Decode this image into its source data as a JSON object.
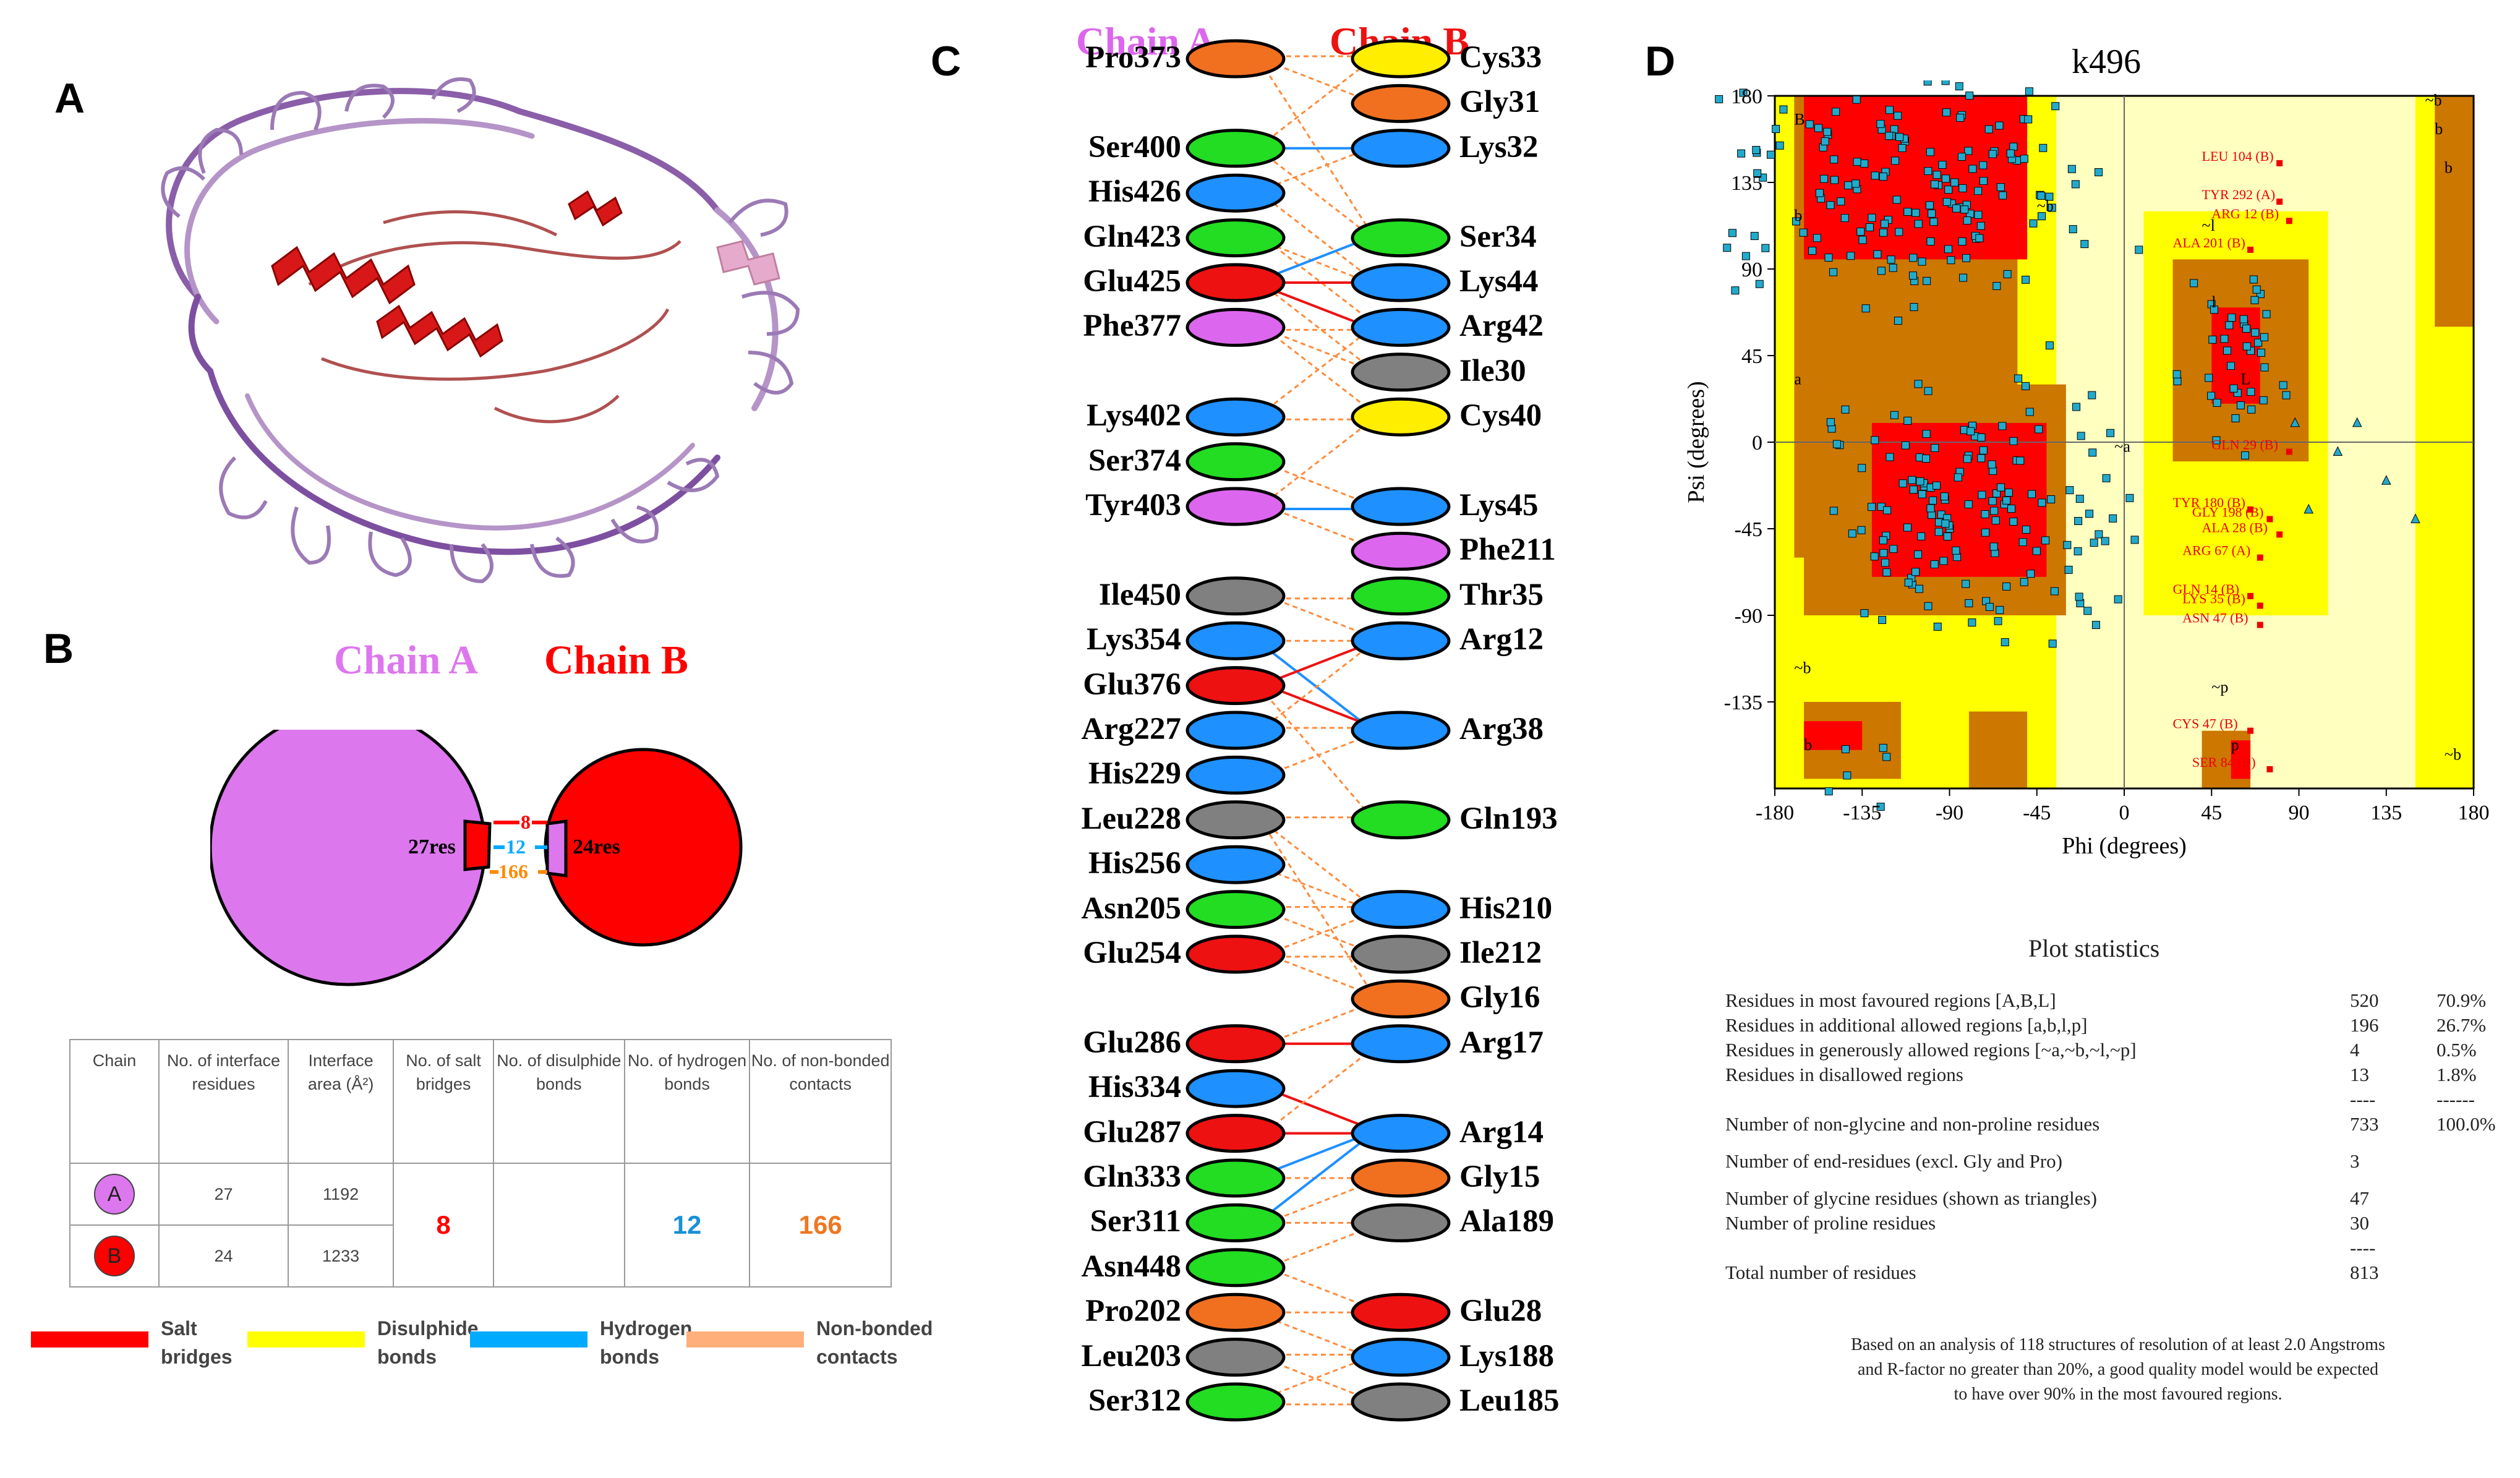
{
  "panel_labels": {
    "a": "A",
    "b": "B",
    "c": "C",
    "d": "D"
  },
  "panel_b": {
    "chain_a_title": "Chain A",
    "chain_b_title": "Chain B",
    "chain_a_res": "27res",
    "chain_b_res": "24res",
    "salt_count": "8",
    "hbond_count": "12",
    "nonbonded_count": "166",
    "colors": {
      "chain_a": "#dd77ee",
      "chain_b": "#ff0000",
      "salt": "#ff0000",
      "hbond": "#00aaff",
      "nonbonded": "#ff8a00",
      "disulphide": "#ffff00",
      "nonbonded_legend": "#ffb07a"
    },
    "table": {
      "headers": [
        "Chain",
        "No. of interface residues",
        "Interface area (Å²)",
        "No. of salt bridges",
        "No. of disulphide bonds",
        "No. of hydrogen bonds",
        "No. of non-bonded contacts"
      ],
      "row_a": {
        "chain": "A",
        "residues": "27",
        "area": "1192"
      },
      "row_b": {
        "chain": "B",
        "residues": "24",
        "area": "1233"
      },
      "salt": "8",
      "disulphide": "",
      "hbonds": "12",
      "nonbonded": "166"
    },
    "legend": {
      "salt": "Salt bridges",
      "disulphide": "Disulphide bonds",
      "hbond": "Hydrogen bonds",
      "nonbonded": "Non-bonded contacts"
    }
  },
  "panel_c": {
    "chain_a_title": "Chain A",
    "chain_b_title": "Chain B",
    "chain_a": [
      {
        "name": "Pro373",
        "color": "#f07020"
      },
      {
        "name": "Ser400",
        "color": "#22dd22"
      },
      {
        "name": "His426",
        "color": "#1e90ff"
      },
      {
        "name": "Gln423",
        "color": "#22dd22"
      },
      {
        "name": "Glu425",
        "color": "#ee1111"
      },
      {
        "name": "Phe377",
        "color": "#dd66ee"
      },
      {
        "name": "Lys402",
        "color": "#1e90ff"
      },
      {
        "name": "Ser374",
        "color": "#22dd22"
      },
      {
        "name": "Tyr403",
        "color": "#dd66ee"
      },
      {
        "name": "Ile450",
        "color": "#808080"
      },
      {
        "name": "Lys354",
        "color": "#1e90ff"
      },
      {
        "name": "Glu376",
        "color": "#ee1111"
      },
      {
        "name": "Arg227",
        "color": "#1e90ff"
      },
      {
        "name": "His229",
        "color": "#1e90ff"
      },
      {
        "name": "Leu228",
        "color": "#808080"
      },
      {
        "name": "His256",
        "color": "#1e90ff"
      },
      {
        "name": "Asn205",
        "color": "#22dd22"
      },
      {
        "name": "Glu254",
        "color": "#ee1111"
      },
      {
        "name": "Glu286",
        "color": "#ee1111"
      },
      {
        "name": "His334",
        "color": "#1e90ff"
      },
      {
        "name": "Glu287",
        "color": "#ee1111"
      },
      {
        "name": "Gln333",
        "color": "#22dd22"
      },
      {
        "name": "Ser311",
        "color": "#22dd22"
      },
      {
        "name": "Asn448",
        "color": "#22dd22"
      },
      {
        "name": "Pro202",
        "color": "#f07020"
      },
      {
        "name": "Leu203",
        "color": "#808080"
      },
      {
        "name": "Ser312",
        "color": "#22dd22"
      }
    ],
    "chain_b": [
      {
        "name": "Cys33",
        "color": "#ffee00"
      },
      {
        "name": "Gly31",
        "color": "#f07020"
      },
      {
        "name": "Lys32",
        "color": "#1e90ff"
      },
      {
        "name": "Ser34",
        "color": "#22dd22"
      },
      {
        "name": "Lys44",
        "color": "#1e90ff"
      },
      {
        "name": "Arg42",
        "color": "#1e90ff"
      },
      {
        "name": "Ile30",
        "color": "#808080"
      },
      {
        "name": "Cys40",
        "color": "#ffee00"
      },
      {
        "name": "Lys45",
        "color": "#1e90ff"
      },
      {
        "name": "Phe211",
        "color": "#dd66ee"
      },
      {
        "name": "Thr35",
        "color": "#22dd22"
      },
      {
        "name": "Arg12",
        "color": "#1e90ff"
      },
      {
        "name": "Arg38",
        "color": "#1e90ff"
      },
      {
        "name": "Gln193",
        "color": "#22dd22"
      },
      {
        "name": "His210",
        "color": "#1e90ff"
      },
      {
        "name": "Ile212",
        "color": "#808080"
      },
      {
        "name": "Gly16",
        "color": "#f07020"
      },
      {
        "name": "Arg17",
        "color": "#1e90ff"
      },
      {
        "name": "Arg14",
        "color": "#1e90ff"
      },
      {
        "name": "Gly15",
        "color": "#f07020"
      },
      {
        "name": "Ala189",
        "color": "#808080"
      },
      {
        "name": "Glu28",
        "color": "#ee1111"
      },
      {
        "name": "Lys188",
        "color": "#1e90ff"
      },
      {
        "name": "Leu185",
        "color": "#808080"
      }
    ]
  },
  "panel_d": {
    "title": "k496",
    "xlabel": "Phi (degrees)",
    "ylabel": "Psi (degrees)",
    "x_ticks": [
      "-180",
      "-135",
      "-90",
      "-45",
      "0",
      "45",
      "90",
      "135",
      "180"
    ],
    "y_ticks": [
      "180",
      "135",
      "90",
      "45",
      "0",
      "-45",
      "-90",
      "-135"
    ],
    "region_labels": [
      "B",
      "b",
      "b",
      "a",
      "~b",
      "~a",
      "l",
      "L",
      "~l",
      "~p",
      "p",
      "b",
      "~b",
      "~b",
      "b",
      "~b"
    ],
    "outlier_labels": [
      "LEU 104 (B)",
      "TYR 292 (A)",
      "ARG 12 (B)",
      "ALA 201 (B)",
      "GLN 29 (B)",
      "TYR 180 (B)",
      "GLY 198 (B)",
      "ALA 28 (B)",
      "ARG 67 (A)",
      "GLN 14 (B)",
      "LYS 35 (B)",
      "ASN 47 (B)",
      "CYS 47 (B)",
      "SER 84 (B)"
    ],
    "colors": {
      "core": "#ff0000",
      "allowed": "#cc7700",
      "generous": "#ffff00",
      "disallowed": "#ffffc0",
      "point": "#22aacc"
    },
    "stats_title": "Plot statistics",
    "stats": [
      {
        "label": "Residues in most favoured regions  [A,B,L]",
        "count": "520",
        "pct": "70.9%"
      },
      {
        "label": "Residues in additional allowed regions  [a,b,l,p]",
        "count": "196",
        "pct": "26.7%"
      },
      {
        "label": "Residues in generously allowed regions  [~a,~b,~l,~p]",
        "count": "4",
        "pct": "0.5%"
      },
      {
        "label": "Residues in disallowed regions",
        "count": "13",
        "pct": "1.8%"
      },
      {
        "label": "",
        "count": "----",
        "pct": "------"
      },
      {
        "label": "Number of non-glycine and non-proline residues",
        "count": "733",
        "pct": "100.0%"
      },
      {
        "label": "Number of end-residues (excl. Gly and Pro)",
        "count": "3",
        "pct": ""
      },
      {
        "label": "Number of glycine residues (shown as triangles)",
        "count": "47",
        "pct": ""
      },
      {
        "label": "Number of proline residues",
        "count": "30",
        "pct": ""
      },
      {
        "label": "",
        "count": "----",
        "pct": ""
      },
      {
        "label": "Total number of residues",
        "count": "813",
        "pct": ""
      }
    ],
    "note": [
      "Based on an analysis of 118 structures of resolution of at least 2.0 Angstroms",
      "and R-factor no greater than 20%, a good quality model would be expected",
      "to have over 90% in the most favoured regions."
    ]
  }
}
